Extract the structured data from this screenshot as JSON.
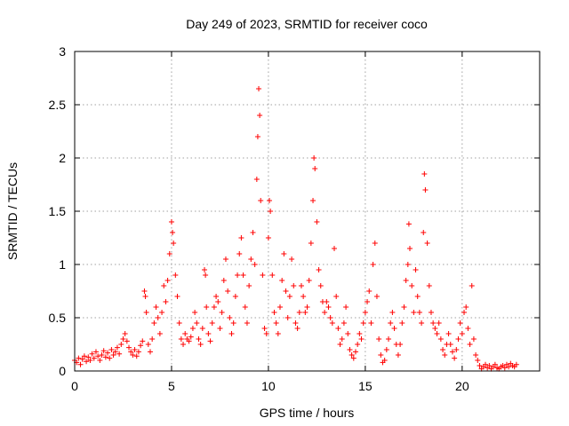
{
  "chart_data": {
    "type": "scatter",
    "title": "Day 249 of 2023, SRMTID for receiver coco",
    "xlabel": "GPS time / hours",
    "ylabel": "SRMTID / TECUs",
    "xlim": [
      0,
      24
    ],
    "ylim": [
      0,
      3
    ],
    "xticks": [
      0,
      5,
      10,
      15,
      20
    ],
    "xtick_labels": [
      "0",
      "5",
      "10",
      "15",
      "20"
    ],
    "yticks": [
      0,
      0.5,
      1,
      1.5,
      2,
      2.5,
      3
    ],
    "ytick_labels": [
      "0",
      "0.5",
      "1",
      "1.5",
      "2",
      "2.5",
      "3"
    ],
    "grid": true,
    "marker": "+",
    "color": "#ff0000",
    "series": [
      {
        "name": "SRMTID",
        "points": [
          [
            0.0,
            0.1
          ],
          [
            0.1,
            0.08
          ],
          [
            0.2,
            0.12
          ],
          [
            0.3,
            0.06
          ],
          [
            0.4,
            0.11
          ],
          [
            0.5,
            0.14
          ],
          [
            0.6,
            0.09
          ],
          [
            0.7,
            0.13
          ],
          [
            0.8,
            0.1
          ],
          [
            0.9,
            0.16
          ],
          [
            1.0,
            0.12
          ],
          [
            1.1,
            0.18
          ],
          [
            1.2,
            0.14
          ],
          [
            1.3,
            0.1
          ],
          [
            1.4,
            0.15
          ],
          [
            1.5,
            0.19
          ],
          [
            1.6,
            0.13
          ],
          [
            1.7,
            0.17
          ],
          [
            1.8,
            0.12
          ],
          [
            1.9,
            0.2
          ],
          [
            2.0,
            0.15
          ],
          [
            2.1,
            0.18
          ],
          [
            2.2,
            0.22
          ],
          [
            2.3,
            0.16
          ],
          [
            2.4,
            0.25
          ],
          [
            2.5,
            0.3
          ],
          [
            2.6,
            0.35
          ],
          [
            2.7,
            0.28
          ],
          [
            2.8,
            0.22
          ],
          [
            2.9,
            0.18
          ],
          [
            3.0,
            0.15
          ],
          [
            3.1,
            0.2
          ],
          [
            3.2,
            0.14
          ],
          [
            3.3,
            0.18
          ],
          [
            3.4,
            0.24
          ],
          [
            3.5,
            0.28
          ],
          [
            3.6,
            0.75
          ],
          [
            3.65,
            0.7
          ],
          [
            3.7,
            0.55
          ],
          [
            3.8,
            0.25
          ],
          [
            3.9,
            0.18
          ],
          [
            4.0,
            0.3
          ],
          [
            4.1,
            0.45
          ],
          [
            4.2,
            0.6
          ],
          [
            4.3,
            0.5
          ],
          [
            4.4,
            0.35
          ],
          [
            4.5,
            0.55
          ],
          [
            4.6,
            0.8
          ],
          [
            4.7,
            0.65
          ],
          [
            4.8,
            0.85
          ],
          [
            4.9,
            1.1
          ],
          [
            5.0,
            1.4
          ],
          [
            5.05,
            1.3
          ],
          [
            5.1,
            1.2
          ],
          [
            5.2,
            0.9
          ],
          [
            5.3,
            0.7
          ],
          [
            5.4,
            0.45
          ],
          [
            5.5,
            0.3
          ],
          [
            5.6,
            0.25
          ],
          [
            5.7,
            0.35
          ],
          [
            5.8,
            0.3
          ],
          [
            5.9,
            0.28
          ],
          [
            6.0,
            0.32
          ],
          [
            6.1,
            0.4
          ],
          [
            6.2,
            0.55
          ],
          [
            6.3,
            0.45
          ],
          [
            6.4,
            0.3
          ],
          [
            6.5,
            0.25
          ],
          [
            6.6,
            0.4
          ],
          [
            6.7,
            0.95
          ],
          [
            6.75,
            0.9
          ],
          [
            6.8,
            0.6
          ],
          [
            6.9,
            0.35
          ],
          [
            7.0,
            0.28
          ],
          [
            7.1,
            0.45
          ],
          [
            7.2,
            0.6
          ],
          [
            7.3,
            0.7
          ],
          [
            7.4,
            0.65
          ],
          [
            7.5,
            0.4
          ],
          [
            7.6,
            0.55
          ],
          [
            7.7,
            0.85
          ],
          [
            7.8,
            1.05
          ],
          [
            7.9,
            0.75
          ],
          [
            8.0,
            0.5
          ],
          [
            8.1,
            0.35
          ],
          [
            8.2,
            0.45
          ],
          [
            8.3,
            0.7
          ],
          [
            8.4,
            0.9
          ],
          [
            8.5,
            1.1
          ],
          [
            8.6,
            1.25
          ],
          [
            8.7,
            0.9
          ],
          [
            8.8,
            0.6
          ],
          [
            8.9,
            0.45
          ],
          [
            9.0,
            0.8
          ],
          [
            9.1,
            1.05
          ],
          [
            9.2,
            1.3
          ],
          [
            9.3,
            1.0
          ],
          [
            9.4,
            1.8
          ],
          [
            9.45,
            2.2
          ],
          [
            9.5,
            2.65
          ],
          [
            9.55,
            2.4
          ],
          [
            9.6,
            1.6
          ],
          [
            9.7,
            0.9
          ],
          [
            9.8,
            0.4
          ],
          [
            9.9,
            0.35
          ],
          [
            10.0,
            1.25
          ],
          [
            10.05,
            1.6
          ],
          [
            10.1,
            1.5
          ],
          [
            10.2,
            0.9
          ],
          [
            10.3,
            0.55
          ],
          [
            10.4,
            0.45
          ],
          [
            10.5,
            0.35
          ],
          [
            10.6,
            0.6
          ],
          [
            10.7,
            0.85
          ],
          [
            10.8,
            1.1
          ],
          [
            10.9,
            0.75
          ],
          [
            11.0,
            0.5
          ],
          [
            11.1,
            0.7
          ],
          [
            11.2,
            1.05
          ],
          [
            11.3,
            0.8
          ],
          [
            11.4,
            0.45
          ],
          [
            11.5,
            0.4
          ],
          [
            11.6,
            0.55
          ],
          [
            11.7,
            0.8
          ],
          [
            11.8,
            0.7
          ],
          [
            11.9,
            0.55
          ],
          [
            12.0,
            0.6
          ],
          [
            12.1,
            0.85
          ],
          [
            12.2,
            1.2
          ],
          [
            12.3,
            1.6
          ],
          [
            12.35,
            2.0
          ],
          [
            12.4,
            1.9
          ],
          [
            12.5,
            1.4
          ],
          [
            12.6,
            0.95
          ],
          [
            12.7,
            0.8
          ],
          [
            12.8,
            0.65
          ],
          [
            12.9,
            0.55
          ],
          [
            13.0,
            0.65
          ],
          [
            13.1,
            0.6
          ],
          [
            13.2,
            0.5
          ],
          [
            13.3,
            0.45
          ],
          [
            13.4,
            1.15
          ],
          [
            13.5,
            0.7
          ],
          [
            13.6,
            0.4
          ],
          [
            13.7,
            0.25
          ],
          [
            13.8,
            0.3
          ],
          [
            13.9,
            0.45
          ],
          [
            14.0,
            0.6
          ],
          [
            14.1,
            0.35
          ],
          [
            14.2,
            0.2
          ],
          [
            14.3,
            0.15
          ],
          [
            14.4,
            0.12
          ],
          [
            14.5,
            0.18
          ],
          [
            14.6,
            0.25
          ],
          [
            14.7,
            0.35
          ],
          [
            14.8,
            0.3
          ],
          [
            14.9,
            0.45
          ],
          [
            15.0,
            0.55
          ],
          [
            15.1,
            0.65
          ],
          [
            15.2,
            0.75
          ],
          [
            15.3,
            0.45
          ],
          [
            15.4,
            1.0
          ],
          [
            15.5,
            1.2
          ],
          [
            15.6,
            0.7
          ],
          [
            15.7,
            0.3
          ],
          [
            15.8,
            0.15
          ],
          [
            15.9,
            0.08
          ],
          [
            16.0,
            0.1
          ],
          [
            16.1,
            0.2
          ],
          [
            16.2,
            0.3
          ],
          [
            16.3,
            0.45
          ],
          [
            16.4,
            0.55
          ],
          [
            16.5,
            0.4
          ],
          [
            16.6,
            0.25
          ],
          [
            16.7,
            0.15
          ],
          [
            16.8,
            0.25
          ],
          [
            16.9,
            0.45
          ],
          [
            17.0,
            0.6
          ],
          [
            17.1,
            0.85
          ],
          [
            17.2,
            1.0
          ],
          [
            17.25,
            1.38
          ],
          [
            17.3,
            1.15
          ],
          [
            17.4,
            0.8
          ],
          [
            17.5,
            0.55
          ],
          [
            17.6,
            0.95
          ],
          [
            17.7,
            0.7
          ],
          [
            17.8,
            0.55
          ],
          [
            17.9,
            0.45
          ],
          [
            18.0,
            1.3
          ],
          [
            18.05,
            1.85
          ],
          [
            18.1,
            1.7
          ],
          [
            18.2,
            1.2
          ],
          [
            18.3,
            0.8
          ],
          [
            18.4,
            0.55
          ],
          [
            18.5,
            0.45
          ],
          [
            18.6,
            0.4
          ],
          [
            18.7,
            0.35
          ],
          [
            18.8,
            0.45
          ],
          [
            18.9,
            0.3
          ],
          [
            19.0,
            0.2
          ],
          [
            19.1,
            0.15
          ],
          [
            19.2,
            0.25
          ],
          [
            19.3,
            0.35
          ],
          [
            19.4,
            0.25
          ],
          [
            19.5,
            0.18
          ],
          [
            19.6,
            0.12
          ],
          [
            19.7,
            0.2
          ],
          [
            19.8,
            0.3
          ],
          [
            19.9,
            0.45
          ],
          [
            20.0,
            0.35
          ],
          [
            20.1,
            0.55
          ],
          [
            20.2,
            0.6
          ],
          [
            20.3,
            0.4
          ],
          [
            20.4,
            0.25
          ],
          [
            20.5,
            0.8
          ],
          [
            20.6,
            0.3
          ],
          [
            20.7,
            0.15
          ],
          [
            20.8,
            0.1
          ],
          [
            20.9,
            0.05
          ],
          [
            21.0,
            0.02
          ],
          [
            21.1,
            0.04
          ],
          [
            21.2,
            0.06
          ],
          [
            21.3,
            0.03
          ],
          [
            21.4,
            0.05
          ],
          [
            21.5,
            0.02
          ],
          [
            21.6,
            0.04
          ],
          [
            21.7,
            0.06
          ],
          [
            21.8,
            0.03
          ],
          [
            21.9,
            0.02
          ],
          [
            22.0,
            0.04
          ],
          [
            22.1,
            0.05
          ],
          [
            22.2,
            0.03
          ],
          [
            22.3,
            0.06
          ],
          [
            22.4,
            0.04
          ],
          [
            22.5,
            0.07
          ],
          [
            22.6,
            0.05
          ],
          [
            22.7,
            0.04
          ],
          [
            22.8,
            0.06
          ]
        ]
      }
    ]
  }
}
